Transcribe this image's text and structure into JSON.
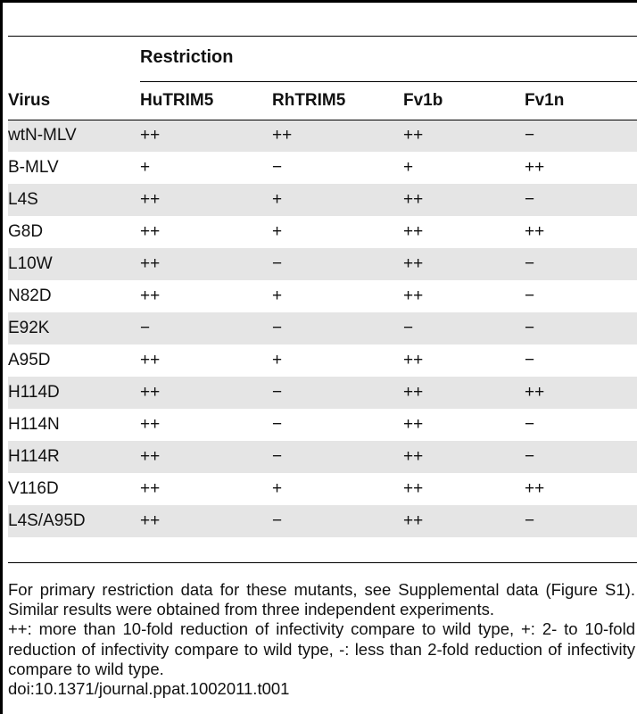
{
  "table": {
    "group_header": "Restriction",
    "columns": [
      "Virus",
      "HuTRIM5",
      "RhTRIM5",
      "Fv1b",
      "Fv1n"
    ],
    "rows": [
      [
        "wtN-MLV",
        "++",
        "++",
        "++",
        "−"
      ],
      [
        "B-MLV",
        "+",
        "−",
        "+",
        "++"
      ],
      [
        "L4S",
        "++",
        "+",
        "++",
        "−"
      ],
      [
        "G8D",
        "++",
        "+",
        "++",
        "++"
      ],
      [
        "L10W",
        "++",
        "−",
        "++",
        "−"
      ],
      [
        "N82D",
        "++",
        "+",
        "++",
        "−"
      ],
      [
        "E92K",
        "−",
        "−",
        "−",
        "−"
      ],
      [
        "A95D",
        "++",
        "+",
        "++",
        "−"
      ],
      [
        "H114D",
        "++",
        "−",
        "++",
        "++"
      ],
      [
        "H114N",
        "++",
        "−",
        "++",
        "−"
      ],
      [
        "H114R",
        "++",
        "−",
        "++",
        "−"
      ],
      [
        "V116D",
        "++",
        "+",
        "++",
        "++"
      ],
      [
        "L4S/A95D",
        "++",
        "−",
        "++",
        "−"
      ]
    ]
  },
  "footnotes": [
    "For primary restriction data for these mutants, see Supplemental data (Figure S1). Similar results were obtained from three independent experiments.",
    "++: more than 10-fold reduction of infectivity compare to wild type, +: 2- to 10-fold reduction of infectivity compare to wild type, -: less than 2-fold reduction of infectivity compare to wild type.",
    "doi:10.1371/journal.ppat.1002011.t001"
  ]
}
